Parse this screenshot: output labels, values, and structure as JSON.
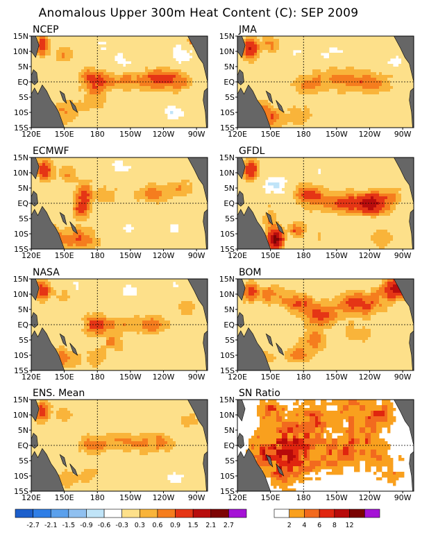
{
  "title": "Anomalous Upper 300m Heat Content (C): SEP 2009",
  "chart_data": {
    "type": "heatmap",
    "lon_ticks": [
      "120E",
      "150E",
      "180",
      "150W",
      "120W",
      "90W"
    ],
    "lat_ticks": [
      "15N",
      "10N",
      "5N",
      "EQ",
      "5S",
      "10S",
      "15S"
    ],
    "xlim": [
      120,
      280
    ],
    "ylim": [
      -15,
      15
    ],
    "reference_lines": [
      "EQ",
      "180"
    ],
    "panels": [
      {
        "title": "NCEP",
        "scale": "anomaly",
        "features": [
          [
            130,
            12,
            4,
            2.5,
            1.3
          ],
          [
            150,
            9,
            6,
            2,
            0.6
          ],
          [
            175,
            1,
            8,
            2.5,
            1.0
          ],
          [
            200,
            0,
            14,
            2,
            0.7
          ],
          [
            235,
            1,
            14,
            2.5,
            0.9
          ],
          [
            255,
            0,
            10,
            2,
            0.6
          ],
          [
            150,
            -10,
            10,
            2.5,
            0.6
          ],
          [
            178,
            -6,
            8,
            3,
            0.5
          ],
          [
            205,
            7,
            9,
            2,
            -0.4
          ],
          [
            260,
            9,
            8,
            2.5,
            -0.6
          ],
          [
            250,
            -10,
            6,
            2,
            -0.6
          ],
          [
            185,
            11,
            6,
            2,
            -0.4
          ],
          [
            270,
            13,
            5,
            2,
            1.2
          ]
        ]
      },
      {
        "title": "JMA",
        "scale": "anomaly",
        "features": [
          [
            132,
            11,
            5,
            2.5,
            1.6
          ],
          [
            150,
            12,
            6,
            2,
            0.7
          ],
          [
            180,
            -1,
            10,
            2,
            0.5
          ],
          [
            215,
            1,
            22,
            3,
            0.7
          ],
          [
            245,
            -1,
            12,
            2.5,
            0.6
          ],
          [
            150,
            -12,
            8,
            2.5,
            0.9
          ],
          [
            175,
            -11,
            8,
            2.5,
            0.6
          ],
          [
            140,
            -8,
            6,
            2,
            0.6
          ],
          [
            205,
            9,
            12,
            2.5,
            -0.3
          ],
          [
            262,
            7,
            8,
            2,
            -0.3
          ],
          [
            172,
            9,
            5,
            2,
            -0.3
          ]
        ]
      },
      {
        "title": "ECMWF",
        "scale": "anomaly",
        "features": [
          [
            132,
            11,
            5,
            2.5,
            1.3
          ],
          [
            152,
            10,
            6,
            2.5,
            0.6
          ],
          [
            168,
            3,
            6,
            3,
            1.0
          ],
          [
            190,
            3,
            8,
            2,
            0.5
          ],
          [
            230,
            3,
            10,
            2.5,
            0.8
          ],
          [
            255,
            5,
            8,
            2,
            0.6
          ],
          [
            140,
            -11,
            8,
            2.5,
            0.9
          ],
          [
            165,
            -12,
            10,
            2.5,
            1.0
          ],
          [
            200,
            12,
            10,
            2,
            -0.4
          ],
          [
            250,
            -8,
            6,
            2,
            -0.35
          ],
          [
            165,
            -2,
            5,
            2,
            0.9
          ],
          [
            210,
            -8,
            8,
            2.5,
            -0.25
          ]
        ]
      },
      {
        "title": "GFDL",
        "scale": "anomaly",
        "features": [
          [
            132,
            11,
            5,
            2.5,
            1.4
          ],
          [
            155,
            6,
            8,
            2,
            -0.8
          ],
          [
            185,
            3,
            10,
            2.5,
            0.9
          ],
          [
            215,
            0,
            18,
            2.5,
            0.9
          ],
          [
            242,
            0,
            10,
            2.5,
            1.6
          ],
          [
            262,
            2,
            6,
            2,
            0.6
          ],
          [
            155,
            -12,
            5,
            2.5,
            2.2
          ],
          [
            175,
            -9,
            5,
            2,
            1.0
          ],
          [
            150,
            -5,
            6,
            3,
            0.5
          ],
          [
            200,
            10,
            10,
            2,
            -0.3
          ],
          [
            250,
            -12,
            8,
            2.5,
            0.6
          ],
          [
            200,
            -11,
            8,
            2,
            0.3
          ]
        ]
      },
      {
        "title": "NASA",
        "scale": "anomaly",
        "features": [
          [
            130,
            11,
            5,
            2.5,
            1.2
          ],
          [
            150,
            10,
            6,
            2,
            0.5
          ],
          [
            178,
            0,
            8,
            2.5,
            1.0
          ],
          [
            200,
            0,
            10,
            2,
            0.6
          ],
          [
            230,
            0,
            10,
            2.5,
            0.8
          ],
          [
            150,
            -11,
            8,
            2.5,
            0.8
          ],
          [
            178,
            -11,
            8,
            2,
            0.6
          ],
          [
            195,
            -6,
            8,
            2,
            0.6
          ],
          [
            160,
            13,
            5,
            2,
            -0.4
          ],
          [
            210,
            11,
            8,
            2,
            -0.4
          ],
          [
            250,
            12,
            6,
            2,
            -0.35
          ],
          [
            245,
            -8,
            10,
            2.5,
            -0.25
          ],
          [
            260,
            6,
            8,
            2,
            0.5
          ]
        ]
      },
      {
        "title": "BOM",
        "scale": "anomaly",
        "features": [
          [
            132,
            11,
            5,
            2.5,
            1.2
          ],
          [
            150,
            10,
            8,
            2.5,
            0.7
          ],
          [
            175,
            7,
            10,
            2.5,
            1.0
          ],
          [
            195,
            3,
            10,
            2.5,
            0.9
          ],
          [
            230,
            7,
            16,
            3,
            1.1
          ],
          [
            265,
            12,
            10,
            2.5,
            1.6
          ],
          [
            190,
            -5,
            8,
            2.5,
            0.8
          ],
          [
            175,
            -10,
            8,
            2,
            0.8
          ],
          [
            145,
            -11,
            6,
            2,
            0.6
          ],
          [
            230,
            -3,
            10,
            2.5,
            0.5
          ],
          [
            240,
            14,
            6,
            1.5,
            -0.4
          ]
        ]
      },
      {
        "title": "ENS. Mean",
        "scale": "anomaly",
        "features": [
          [
            130,
            11,
            5,
            2.5,
            1.2
          ],
          [
            150,
            10,
            6,
            2,
            0.5
          ],
          [
            175,
            0,
            9,
            2.5,
            0.7
          ],
          [
            205,
            1,
            14,
            2.5,
            0.6
          ],
          [
            235,
            1,
            12,
            2.5,
            0.6
          ],
          [
            150,
            -11,
            8,
            2.5,
            0.6
          ],
          [
            175,
            -10,
            8,
            2,
            0.4
          ],
          [
            205,
            11,
            10,
            2,
            -0.3
          ],
          [
            250,
            -10,
            8,
            2.5,
            -0.35
          ],
          [
            265,
            8,
            8,
            2,
            0.4
          ]
        ]
      },
      {
        "title": "SN Ratio",
        "scale": "snr",
        "features": [
          [
            175,
            0,
            20,
            8,
            5.0
          ],
          [
            235,
            2,
            14,
            7,
            4.5
          ],
          [
            210,
            -3,
            10,
            4,
            3.5
          ],
          [
            160,
            -5,
            14,
            6,
            4.0
          ],
          [
            140,
            -2,
            8,
            4,
            3.0
          ],
          [
            190,
            10,
            10,
            4,
            3.0
          ],
          [
            260,
            -8,
            10,
            4,
            3.0
          ],
          [
            150,
            12,
            8,
            3,
            4.0
          ],
          [
            220,
            13,
            10,
            3,
            3.0
          ],
          [
            250,
            11,
            10,
            3,
            3.5
          ]
        ]
      }
    ],
    "colorbars": [
      {
        "name": "anomaly",
        "colors": [
          "#1c5fcc",
          "#2f7ee6",
          "#5aa0ec",
          "#8fc0f0",
          "#c0e4f8",
          "#ffffff",
          "#fde08a",
          "#f9b43a",
          "#f57d1e",
          "#e53515",
          "#b80d0d",
          "#7d0404",
          "#a512d6"
        ],
        "ticks": [
          "-2.7",
          "-2.1",
          "-1.5",
          "-0.9",
          "-0.6",
          "-0.3",
          "0.3",
          "0.6",
          "0.9",
          "1.5",
          "2.1",
          "2.7"
        ]
      },
      {
        "name": "snr",
        "colors": [
          "#ffffff",
          "#f9a01e",
          "#f26a1e",
          "#e0250f",
          "#b80a0a",
          "#7a0202",
          "#a512d6"
        ],
        "ticks": [
          "2",
          "4",
          "6",
          "8",
          "12"
        ]
      }
    ],
    "land_color": "#666666",
    "grid": "dashed equator and dateline"
  }
}
